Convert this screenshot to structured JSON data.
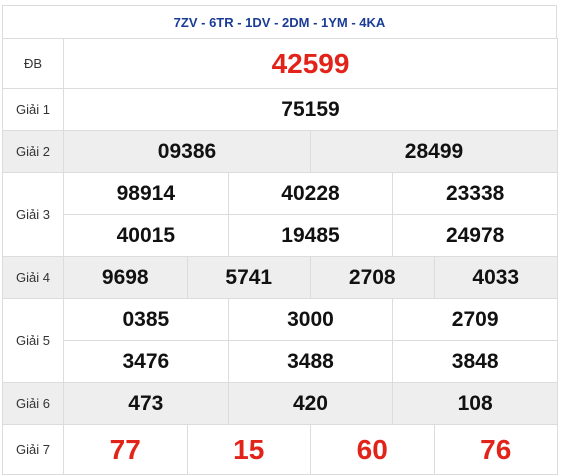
{
  "header": {
    "title": "7ZV - 6TR - 1DV - 2DM - 1YM - 4KA"
  },
  "table": {
    "rows": [
      {
        "label": "ĐB",
        "numbers": [
          "42599"
        ]
      },
      {
        "label": "Giải 1",
        "numbers": [
          "75159"
        ]
      },
      {
        "label": "Giải 2",
        "numbers": [
          "09386",
          "28499"
        ]
      },
      {
        "label": "Giải 3",
        "numbers": [
          "98914",
          "40228",
          "23338",
          "40015",
          "19485",
          "24978"
        ]
      },
      {
        "label": "Giải 4",
        "numbers": [
          "9698",
          "5741",
          "2708",
          "4033"
        ]
      },
      {
        "label": "Giải 5",
        "numbers": [
          "0385",
          "3000",
          "2709",
          "3476",
          "3488",
          "3848"
        ]
      },
      {
        "label": "Giải 6",
        "numbers": [
          "473",
          "420",
          "108"
        ]
      },
      {
        "label": "Giải 7",
        "numbers": [
          "77",
          "15",
          "60",
          "76"
        ]
      }
    ]
  }
}
